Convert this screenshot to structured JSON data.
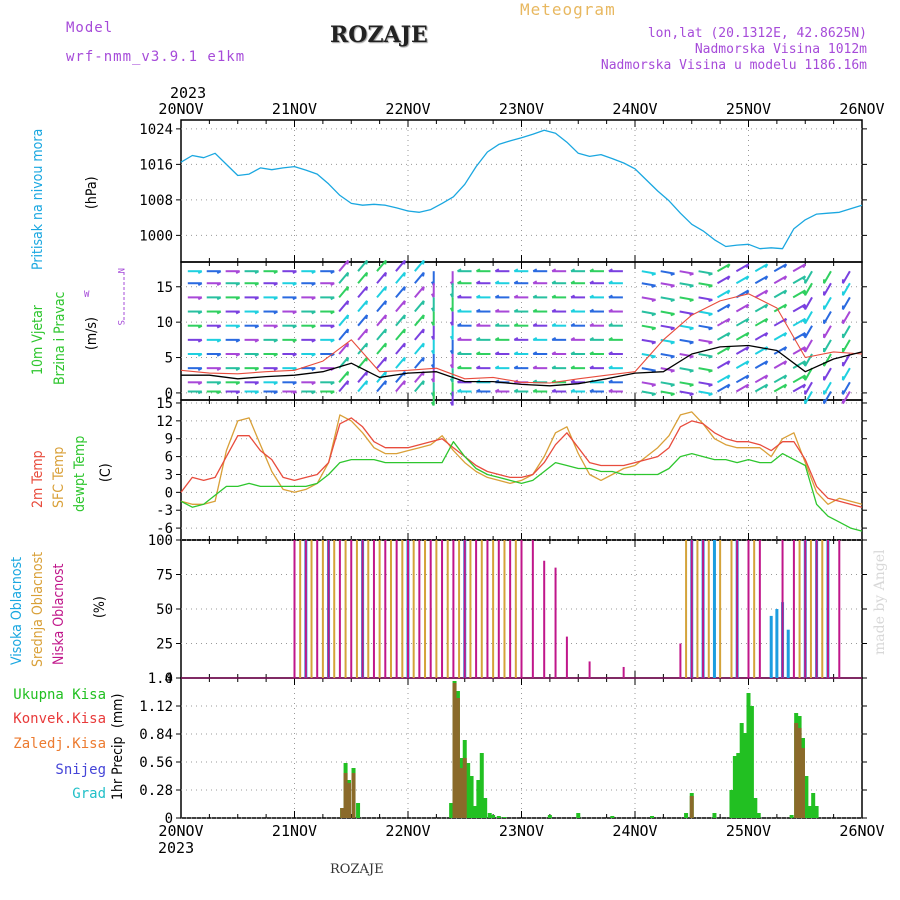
{
  "header": {
    "model_label": "Model",
    "model_name": "wrf-nmm_v3.9.1 e1km",
    "title": "ROZAJE",
    "subtitle": "Meteogram",
    "coords": "lon,lat (20.1312E, 42.8625N)",
    "altitude": "Nadmorska Visina 1012m",
    "model_altitude": "Nadmorska Visina u modelu 1186.16m",
    "footer_location": "ROZAJE",
    "credit": "made by Angel"
  },
  "colors": {
    "pressure": "#1aa7e0",
    "temp2m": "#e84c3d",
    "sfc": "#d9a038",
    "dewpt": "#2ec62e",
    "purple": "#a64bd9",
    "low_cloud": "#c0168a",
    "mid_cloud": "#d4a33a",
    "high_cloud": "#1c9de0",
    "total_precip": "#22c022",
    "conv_precip": "#8a6a2a",
    "label_red": "#e83a3a",
    "label_orange": "#ec7b30",
    "label_blue": "#4545d8",
    "label_cyan": "#22c0c8"
  },
  "chart_data": [
    {
      "type": "line",
      "title": "",
      "ylabel": "Pritisak na nivou mora",
      "unit": "(hPa)",
      "x_axis": {
        "type": "time",
        "start": "2023-11-20T00",
        "end": "2023-11-26T00",
        "ticks": [
          "20NOV",
          "21NOV",
          "22NOV",
          "23NOV",
          "24NOV",
          "25NOV",
          "26NOV"
        ],
        "year_label": "2023"
      },
      "ylim": [
        994,
        1026
      ],
      "yticks": [
        1000,
        1008,
        1016,
        1024
      ],
      "grid": true,
      "series": [
        {
          "name": "Pritisak na nivou mora",
          "x_days": [
            0,
            0.1,
            0.2,
            0.3,
            0.4,
            0.5,
            0.6,
            0.7,
            0.8,
            0.9,
            1.0,
            1.1,
            1.2,
            1.3,
            1.4,
            1.5,
            1.6,
            1.7,
            1.8,
            1.9,
            2.0,
            2.1,
            2.2,
            2.3,
            2.4,
            2.5,
            2.6,
            2.7,
            2.8,
            2.9,
            3.0,
            3.1,
            3.2,
            3.3,
            3.4,
            3.5,
            3.6,
            3.7,
            3.8,
            3.9,
            4.0,
            4.1,
            4.2,
            4.3,
            4.4,
            4.5,
            4.6,
            4.7,
            4.8,
            4.9,
            5.0,
            5.1,
            5.2,
            5.3,
            5.4,
            5.5,
            5.6,
            5.7,
            5.8,
            5.9,
            6.0
          ],
          "values": [
            1016.5,
            1018,
            1017.5,
            1018.5,
            1016,
            1013.5,
            1013.8,
            1015.2,
            1014.8,
            1015.2,
            1015.5,
            1014.7,
            1013.8,
            1011.6,
            1009,
            1007.2,
            1006.8,
            1007,
            1006.8,
            1006.2,
            1005.5,
            1005.2,
            1005.8,
            1007.2,
            1008.7,
            1011.5,
            1015.5,
            1018.8,
            1020.5,
            1021.3,
            1022,
            1022.8,
            1023.7,
            1023,
            1021,
            1018.5,
            1017.8,
            1018.2,
            1017.3,
            1016.3,
            1015,
            1012.5,
            1010,
            1007.8,
            1005,
            1002.5,
            1001,
            999,
            997.5,
            997.8,
            998,
            997,
            997.2,
            997,
            1001.5,
            1003.5,
            1004.8,
            1005,
            1005.2,
            1006,
            1006.8
          ]
        }
      ]
    },
    {
      "type": "line",
      "title": "",
      "ylabel_lines": [
        "10m Vjetar",
        "Brzina i Pravac"
      ],
      "unit": "(m/s)",
      "compass": {
        "north": "N",
        "south": "S",
        "east": "E",
        "west": "W"
      },
      "ylim": [
        -1,
        18.5
      ],
      "yticks": [
        0,
        5,
        10,
        15
      ],
      "grid": true,
      "series": [
        {
          "name": "wind speed",
          "x_days": [
            0,
            0.25,
            0.5,
            0.75,
            1.0,
            1.25,
            1.5,
            1.75,
            2.0,
            2.25,
            2.5,
            2.75,
            3.0,
            3.25,
            3.5,
            3.75,
            4.0,
            4.25,
            4.5,
            4.75,
            5.0,
            5.25,
            5.5,
            5.75,
            6.0
          ],
          "values": [
            2.5,
            2.5,
            2,
            2.3,
            2.5,
            3,
            4.2,
            2.2,
            2.8,
            3,
            1.6,
            1.6,
            1.2,
            1,
            1.3,
            2,
            2.8,
            3,
            5.5,
            6.5,
            6.7,
            6,
            3,
            4.8,
            5.8
          ]
        },
        {
          "name": "gust",
          "x_days": [
            0,
            0.25,
            0.5,
            0.75,
            1.0,
            1.25,
            1.5,
            1.75,
            2.0,
            2.25,
            2.5,
            2.75,
            3.0,
            3.25,
            3.5,
            3.75,
            4.0,
            4.25,
            4.5,
            4.75,
            5.0,
            5.25,
            5.5,
            5.75,
            6.0
          ],
          "values": [
            3.2,
            2.8,
            2.7,
            3,
            3.2,
            4.5,
            7.5,
            3,
            3.2,
            3.5,
            2,
            2.2,
            1.5,
            1.4,
            2,
            2.5,
            3,
            7.5,
            11,
            13,
            14,
            12,
            5,
            5.8,
            5.5
          ]
        }
      ]
    },
    {
      "type": "line",
      "title": "",
      "ylabel_lines": [
        "2m Temp",
        "SFC Temp",
        "dewpt Temp"
      ],
      "unit": "(C)",
      "ylim": [
        -8,
        15.5
      ],
      "yticks": [
        -6,
        -3,
        0,
        3,
        6,
        9,
        12,
        15
      ],
      "grid": true,
      "series": [
        {
          "name": "2m Temp",
          "x_days": [
            0,
            0.1,
            0.2,
            0.3,
            0.4,
            0.5,
            0.6,
            0.7,
            0.8,
            0.9,
            1.0,
            1.1,
            1.2,
            1.3,
            1.4,
            1.5,
            1.6,
            1.7,
            1.8,
            1.9,
            2.0,
            2.1,
            2.2,
            2.3,
            2.4,
            2.5,
            2.6,
            2.7,
            2.8,
            2.9,
            3.0,
            3.1,
            3.2,
            3.3,
            3.4,
            3.5,
            3.6,
            3.7,
            3.8,
            3.9,
            4.0,
            4.1,
            4.2,
            4.3,
            4.4,
            4.5,
            4.6,
            4.7,
            4.8,
            4.9,
            5.0,
            5.1,
            5.2,
            5.3,
            5.4,
            5.5,
            5.6,
            5.7,
            5.8,
            5.9,
            6.0
          ],
          "values": [
            0,
            2.5,
            2,
            2.5,
            6,
            9.5,
            9.5,
            7,
            5.5,
            2.5,
            2,
            2.5,
            3,
            5,
            11.5,
            12.5,
            11,
            8.5,
            7.5,
            7.5,
            7.5,
            8,
            8.5,
            9,
            7.5,
            6,
            4.5,
            3.5,
            3,
            2.5,
            2.5,
            3,
            5,
            8,
            10,
            7.5,
            5,
            4.5,
            4.5,
            4.5,
            5,
            5.5,
            6,
            7.5,
            11,
            12,
            11.5,
            10,
            9,
            8.5,
            8.5,
            8,
            7,
            8.5,
            8.5,
            5.5,
            1,
            -1,
            -1.5,
            -2,
            -2.5
          ]
        },
        {
          "name": "SFC Temp",
          "x_days": [
            0,
            0.1,
            0.2,
            0.3,
            0.4,
            0.5,
            0.6,
            0.7,
            0.8,
            0.9,
            1.0,
            1.1,
            1.2,
            1.3,
            1.4,
            1.5,
            1.6,
            1.7,
            1.8,
            1.9,
            2.0,
            2.1,
            2.2,
            2.3,
            2.4,
            2.5,
            2.6,
            2.7,
            2.8,
            2.9,
            3.0,
            3.1,
            3.2,
            3.3,
            3.4,
            3.5,
            3.6,
            3.7,
            3.8,
            3.9,
            4.0,
            4.1,
            4.2,
            4.3,
            4.4,
            4.5,
            4.6,
            4.7,
            4.8,
            4.9,
            5.0,
            5.1,
            5.2,
            5.3,
            5.4,
            5.5,
            5.6,
            5.7,
            5.8,
            5.9,
            6.0
          ],
          "values": [
            -1.5,
            -2,
            -2,
            -1.5,
            7,
            12,
            12.5,
            8,
            3.5,
            0.5,
            0,
            0.5,
            1.5,
            5,
            13,
            12,
            10,
            7.5,
            6.5,
            6.5,
            7,
            7.5,
            8,
            9.5,
            7,
            5,
            3.5,
            2.5,
            2,
            1.5,
            2,
            3,
            6,
            10,
            11,
            6.5,
            3,
            2,
            3,
            4,
            4.5,
            6,
            7.5,
            9.5,
            13,
            13.5,
            11.5,
            9,
            8,
            7.5,
            7.5,
            7.5,
            6,
            9,
            10,
            5,
            0,
            -2,
            -1,
            -1.5,
            -2
          ]
        },
        {
          "name": "dewpt Temp",
          "x_days": [
            0,
            0.1,
            0.2,
            0.3,
            0.4,
            0.5,
            0.6,
            0.7,
            0.8,
            0.9,
            1.0,
            1.1,
            1.2,
            1.3,
            1.4,
            1.5,
            1.6,
            1.7,
            1.8,
            1.9,
            2.0,
            2.1,
            2.2,
            2.3,
            2.4,
            2.5,
            2.6,
            2.7,
            2.8,
            2.9,
            3.0,
            3.1,
            3.2,
            3.3,
            3.4,
            3.5,
            3.6,
            3.7,
            3.8,
            3.9,
            4.0,
            4.1,
            4.2,
            4.3,
            4.4,
            4.5,
            4.6,
            4.7,
            4.8,
            4.9,
            5.0,
            5.1,
            5.2,
            5.3,
            5.4,
            5.5,
            5.6,
            5.7,
            5.8,
            5.9,
            6.0
          ],
          "values": [
            -1.5,
            -2.5,
            -2,
            -0.5,
            1,
            1,
            1.5,
            1,
            1,
            1,
            1,
            1,
            1.5,
            3,
            5,
            5.5,
            5.5,
            5.5,
            5,
            5,
            5,
            5,
            5,
            5,
            8.5,
            6,
            4,
            3,
            2.5,
            2,
            1.5,
            2,
            3.5,
            5,
            4.5,
            4,
            4,
            3.5,
            3.5,
            3,
            3,
            3,
            3,
            4,
            6,
            6.5,
            6,
            5.5,
            5.5,
            5,
            5.5,
            5,
            5,
            6.5,
            5.5,
            4.5,
            -2,
            -4,
            -5,
            -6,
            -6.5
          ]
        }
      ]
    },
    {
      "type": "bar",
      "title": "",
      "ylabel_lines": [
        "Visoka Oblacnost",
        "Srednja Oblacnost",
        "Niska Oblacnost"
      ],
      "unit": "(%)",
      "ylim": [
        0,
        100
      ],
      "yticks": [
        0,
        25,
        50,
        75,
        100
      ],
      "grid": true,
      "series": [
        {
          "name": "Niska Oblacnost",
          "x_days": [
            1.0,
            1.1,
            1.2,
            1.3,
            1.4,
            1.5,
            1.6,
            1.7,
            1.8,
            1.9,
            2.0,
            2.1,
            2.2,
            2.3,
            2.4,
            2.5,
            2.6,
            2.7,
            2.8,
            2.9,
            3.0,
            3.1,
            3.2,
            3.3,
            3.4,
            3.6,
            3.9,
            4.4,
            4.5,
            4.6,
            4.9,
            5.0,
            5.1,
            5.3,
            5.4,
            5.5,
            5.6,
            5.7,
            5.8
          ],
          "values": [
            100,
            100,
            100,
            100,
            100,
            100,
            100,
            100,
            100,
            100,
            100,
            100,
            100,
            100,
            100,
            100,
            100,
            100,
            100,
            100,
            100,
            100,
            85,
            80,
            30,
            12,
            8,
            25,
            100,
            100,
            100,
            100,
            100,
            100,
            100,
            100,
            100,
            100,
            100
          ]
        },
        {
          "name": "Srednja Oblacnost",
          "x_days": [
            1.05,
            1.15,
            1.25,
            1.35,
            1.45,
            1.55,
            1.65,
            1.75,
            1.85,
            1.95,
            2.05,
            2.15,
            2.25,
            2.35,
            2.45,
            2.55,
            2.65,
            2.75,
            2.85,
            2.95,
            4.45,
            4.55,
            4.65,
            4.75,
            4.85,
            5.05,
            5.45,
            5.55,
            5.65
          ],
          "values": [
            100,
            100,
            100,
            100,
            100,
            100,
            100,
            100,
            100,
            100,
            100,
            100,
            100,
            100,
            100,
            100,
            100,
            100,
            100,
            100,
            100,
            100,
            100,
            100,
            100,
            100,
            100,
            100,
            100
          ]
        },
        {
          "name": "Visoka Oblacnost",
          "x_days": [
            1.1,
            1.3,
            1.6,
            2.0,
            2.5,
            4.5,
            4.6,
            4.7,
            4.9,
            5.2,
            5.25,
            5.3,
            5.35,
            5.5,
            5.6,
            5.7
          ],
          "values": [
            100,
            100,
            100,
            100,
            100,
            100,
            100,
            100,
            100,
            45,
            50,
            55,
            35,
            100,
            100,
            100
          ]
        }
      ]
    },
    {
      "type": "bar",
      "title": "",
      "ylabel": "1hr Precip",
      "unit": "(mm)",
      "ylim": [
        0,
        1.4
      ],
      "yticks": [
        0,
        0.28,
        0.56,
        0.84,
        1.12,
        1.4
      ],
      "ytick_labels": [
        "0",
        "0.28",
        "0.56",
        "0.84",
        "1.12",
        "1.4"
      ],
      "grid": true,
      "legend": [
        "Ukupna Kisa",
        "Konvek.Kisa",
        "Zaledj.Kisa",
        "Snijeg",
        "Grad"
      ],
      "series": [
        {
          "name": "Ukupna Kisa",
          "x_days": [
            1.42,
            1.45,
            1.48,
            1.52,
            1.56,
            2.38,
            2.41,
            2.44,
            2.47,
            2.5,
            2.53,
            2.56,
            2.59,
            2.62,
            2.65,
            2.68,
            2.72,
            2.75,
            2.8,
            2.85,
            3.25,
            3.5,
            3.8,
            4.15,
            4.45,
            4.5,
            4.7,
            4.85,
            4.88,
            4.91,
            4.94,
            4.97,
            5.0,
            5.03,
            5.06,
            5.09,
            5.38,
            5.42,
            5.45,
            5.48,
            5.51,
            5.54,
            5.57,
            5.6
          ],
          "values": [
            0.1,
            0.55,
            0.38,
            0.5,
            0.15,
            0.15,
            1.37,
            1.27,
            0.6,
            0.78,
            0.55,
            0.42,
            0.12,
            0.38,
            0.65,
            0.2,
            0.05,
            0.03,
            0.02,
            0.01,
            0.03,
            0.05,
            0.02,
            0.02,
            0.05,
            0.25,
            0.05,
            0.28,
            0.62,
            0.65,
            0.95,
            0.85,
            1.25,
            1.12,
            0.2,
            0.05,
            0.03,
            1.05,
            1.02,
            0.8,
            0.42,
            0.12,
            0.25,
            0.12
          ]
        },
        {
          "name": "Konvek.Kisa",
          "x_days": [
            1.42,
            1.45,
            1.48,
            1.52,
            2.41,
            2.44,
            2.47,
            2.5,
            4.5,
            5.42,
            5.45,
            5.48
          ],
          "values": [
            0.1,
            0.45,
            0.35,
            0.45,
            1.35,
            1.2,
            0.5,
            0.6,
            0.22,
            0.95,
            0.9,
            0.7
          ]
        }
      ]
    }
  ],
  "panel_labels": {
    "p1_title": "Pritisak na nivou mora",
    "p1_unit": "(hPa)",
    "p2_line1": "10m Vjetar",
    "p2_line2": "Brzina i Pravac",
    "p2_unit": "(m/s)",
    "p3_line1": "2m Temp",
    "p3_line2": "SFC Temp",
    "p3_line3": "dewpt Temp",
    "p3_unit": "(C)",
    "p4_line1": "Visoka Oblacnost",
    "p4_line2": "Srednja Oblacnost",
    "p4_line3": "Niska Oblacnost",
    "p4_unit": "(%)",
    "p5_title": "1hr Precip",
    "p5_unit": "(mm)"
  },
  "x_axis": {
    "year": "2023",
    "ticks": [
      "20NOV",
      "21NOV",
      "22NOV",
      "23NOV",
      "24NOV",
      "25NOV",
      "26NOV"
    ]
  }
}
